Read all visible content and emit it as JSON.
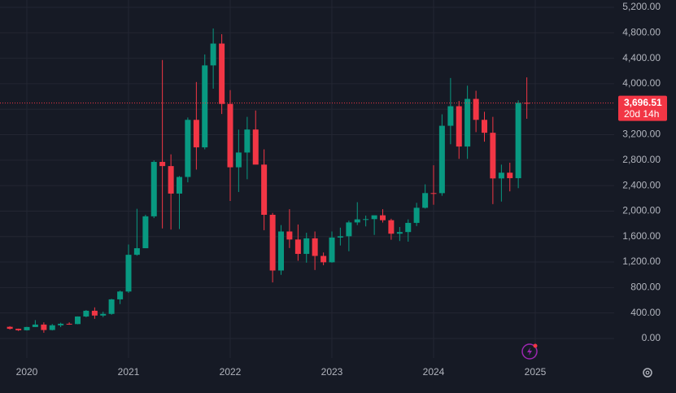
{
  "chart_data": {
    "type": "candlestick",
    "x": [
      2019.833,
      2019.917,
      2020.0,
      2020.083,
      2020.167,
      2020.25,
      2020.333,
      2020.417,
      2020.5,
      2020.583,
      2020.667,
      2020.75,
      2020.833,
      2020.917,
      2021.0,
      2021.083,
      2021.167,
      2021.25,
      2021.333,
      2021.417,
      2021.5,
      2021.583,
      2021.667,
      2021.75,
      2021.833,
      2021.917,
      2022.0,
      2022.083,
      2022.167,
      2022.25,
      2022.333,
      2022.417,
      2022.5,
      2022.583,
      2022.667,
      2022.75,
      2022.833,
      2022.917,
      2023.0,
      2023.083,
      2023.167,
      2023.25,
      2023.333,
      2023.417,
      2023.5,
      2023.583,
      2023.667,
      2023.75,
      2023.833,
      2023.917,
      2024.0,
      2024.083,
      2024.167,
      2024.25,
      2024.333,
      2024.417,
      2024.5,
      2024.583,
      2024.667,
      2024.75,
      2024.833,
      2024.917
    ],
    "open": [
      183,
      152,
      129,
      180,
      218,
      133,
      207,
      231,
      226,
      345,
      435,
      360,
      386,
      614,
      737,
      1314,
      1417,
      1918,
      2773,
      2707,
      2275,
      2536,
      3433,
      3001,
      4288,
      4631,
      3683,
      2688,
      2920,
      3281,
      2730,
      1942,
      1067,
      1680,
      1554,
      1328,
      1572,
      1296,
      1196,
      1585,
      1605,
      1822,
      1870,
      1874,
      1934,
      1857,
      1645,
      1671,
      1815,
      2052,
      2283,
      2282,
      3340,
      3647,
      3014,
      3762,
      3433,
      3230,
      2513,
      2603,
      2517,
      3700
    ],
    "high": [
      193,
      155,
      184,
      288,
      253,
      227,
      247,
      253,
      347,
      446,
      488,
      420,
      622,
      752,
      1475,
      2036,
      1943,
      2797,
      4372,
      2891,
      2551,
      3470,
      4027,
      4460,
      4868,
      4778,
      3900,
      3280,
      3480,
      3580,
      2970,
      1971,
      1780,
      2030,
      1790,
      1660,
      1680,
      1350,
      1680,
      1740,
      1850,
      2140,
      1930,
      1930,
      2030,
      1880,
      1750,
      1870,
      2130,
      2420,
      2720,
      3520,
      4090,
      3730,
      3970,
      3890,
      3560,
      3480,
      2730,
      2760,
      3740,
      4100
    ],
    "low": [
      139,
      117,
      125,
      180,
      90,
      126,
      178,
      215,
      224,
      334,
      308,
      335,
      372,
      540,
      715,
      1300,
      1434,
      1890,
      1728,
      1710,
      1718,
      2452,
      2652,
      2970,
      3922,
      3525,
      2159,
      2300,
      2500,
      2760,
      1700,
      880,
      1000,
      1420,
      1220,
      1190,
      1075,
      1150,
      1190,
      1460,
      1370,
      1780,
      1760,
      1626,
      1820,
      1550,
      1530,
      1520,
      1765,
      2040,
      2100,
      2240,
      3050,
      2820,
      2820,
      3240,
      3090,
      2110,
      2150,
      2310,
      2360,
      3450
    ],
    "close": [
      152,
      129,
      180,
      218,
      133,
      207,
      231,
      226,
      345,
      435,
      360,
      386,
      614,
      737,
      1314,
      1417,
      1918,
      2773,
      2707,
      2275,
      2536,
      3433,
      3001,
      4288,
      4631,
      3683,
      2688,
      2920,
      3281,
      2730,
      1942,
      1067,
      1680,
      1554,
      1328,
      1572,
      1296,
      1196,
      1585,
      1605,
      1822,
      1870,
      1874,
      1934,
      1857,
      1645,
      1671,
      1815,
      2052,
      2283,
      2282,
      3340,
      3647,
      3014,
      3762,
      3433,
      3230,
      2513,
      2603,
      2517,
      3700,
      3696.51
    ],
    "up_color": "#089981",
    "down_color": "#f23645",
    "xlim": [
      2019.736,
      2025.776
    ],
    "xticks": [
      2020,
      2021,
      2022,
      2023,
      2024,
      2025
    ],
    "ylim": [
      -307,
      5315
    ],
    "yticks": [
      {
        "value": 0,
        "label": "0.00"
      },
      {
        "value": 400,
        "label": "400.00"
      },
      {
        "value": 800,
        "label": "800.00"
      },
      {
        "value": 1200,
        "label": "1,200.00"
      },
      {
        "value": 1600,
        "label": "1,600.00"
      },
      {
        "value": 2000,
        "label": "2,000.00"
      },
      {
        "value": 2400,
        "label": "2,400.00"
      },
      {
        "value": 2800,
        "label": "2,800.00"
      },
      {
        "value": 3200,
        "label": "3,200.00"
      },
      {
        "value": 3600,
        "label": "3,600.00"
      },
      {
        "value": 4000,
        "label": "4,000.00"
      },
      {
        "value": 4400,
        "label": "4,400.00"
      },
      {
        "value": 4800,
        "label": "4,800.00"
      },
      {
        "value": 5200,
        "label": "5,200.00"
      }
    ],
    "grid": true,
    "last_price": 3696.51,
    "last_price_label": "3,696.51",
    "countdown": "20d 14h"
  }
}
